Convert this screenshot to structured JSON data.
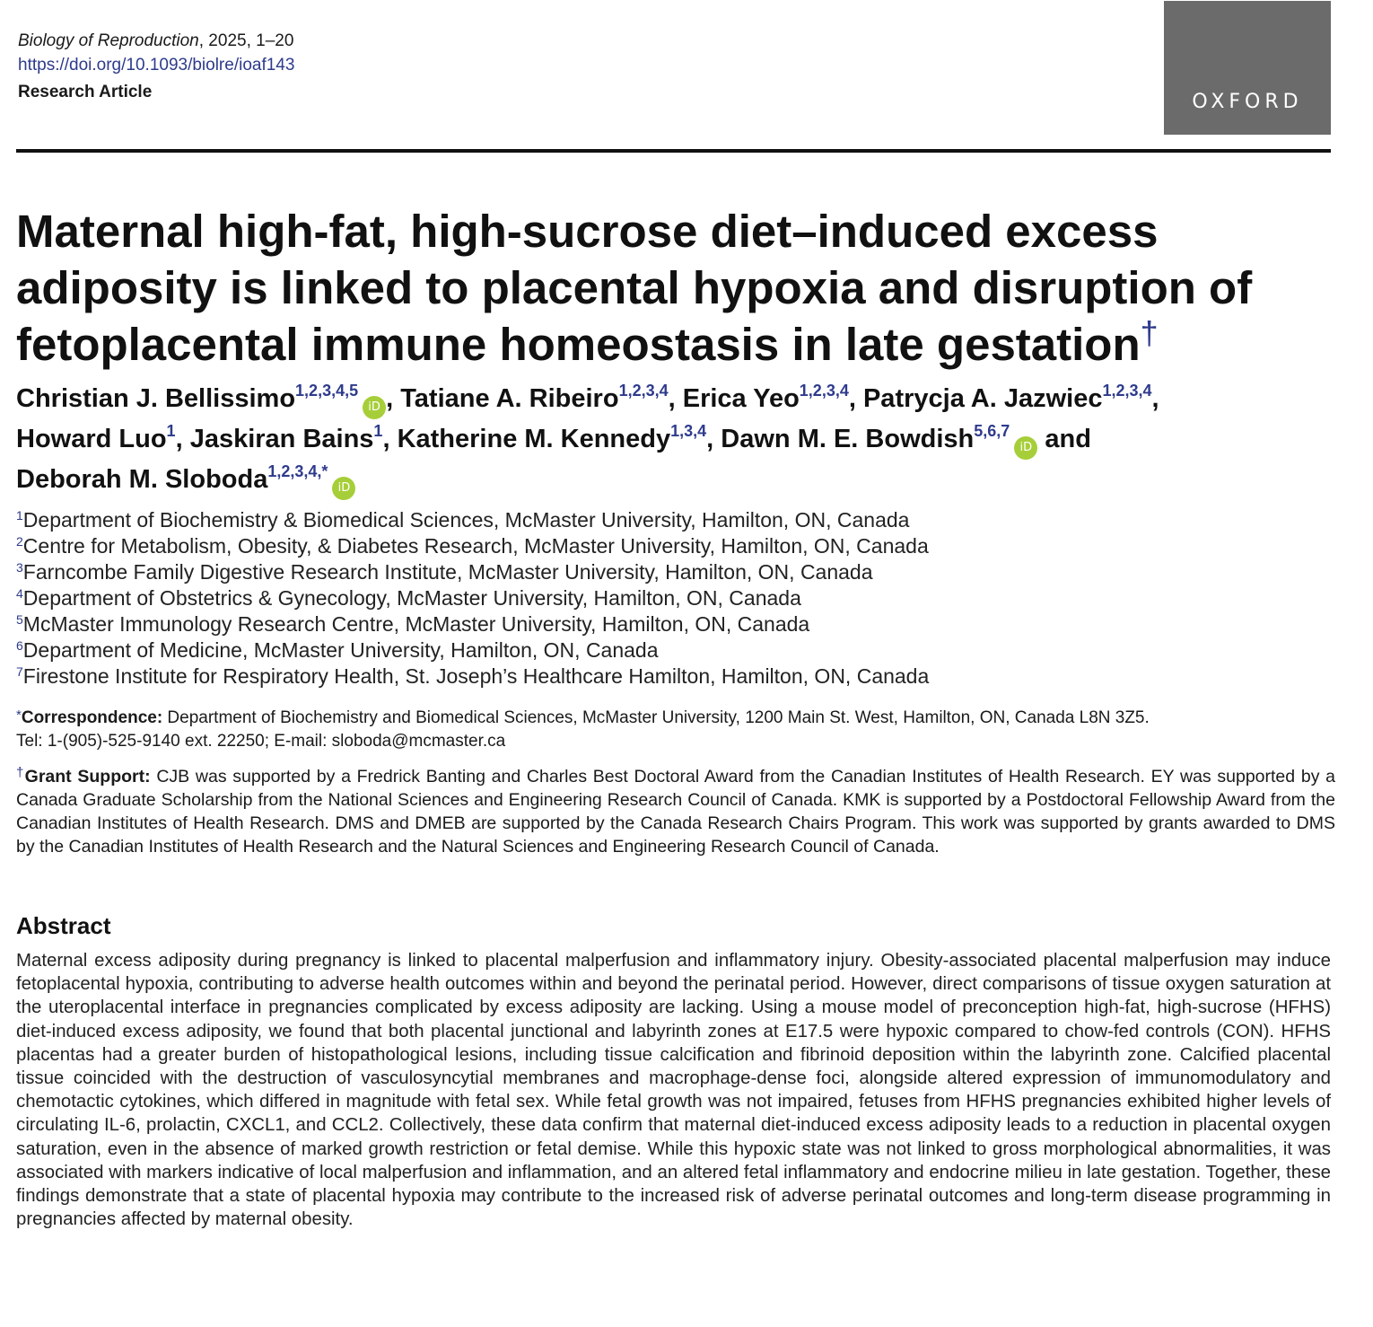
{
  "header": {
    "journal_name": "Biology of Reproduction",
    "journal_rest": ", 2025, 1–20",
    "doi": "https://doi.org/10.1093/biolre/ioaf143",
    "article_type": "Research Article"
  },
  "logo": {
    "text": "OXFORD"
  },
  "title": {
    "text": "Maternal high-fat, high-sucrose diet–induced excess adiposity is linked to placental hypoxia and disruption of fetoplacental immune homeostasis in late gestation",
    "dagger": "†"
  },
  "authors": [
    {
      "name": "Christian J. Bellissimo",
      "sup": "1,2,3,4,5",
      "orcid": true,
      "sep": ", "
    },
    {
      "name": "Tatiane A. Ribeiro",
      "sup": "1,2,3,4",
      "orcid": false,
      "sep": ", "
    },
    {
      "name": "Erica Yeo",
      "sup": "1,2,3,4",
      "orcid": false,
      "sep": ", "
    },
    {
      "name": "Patrycja A. Jazwiec",
      "sup": "1,2,3,4",
      "orcid": false,
      "sep": ", "
    },
    {
      "name": "Howard Luo",
      "sup": "1",
      "orcid": false,
      "sep": ", "
    },
    {
      "name": "Jaskiran Bains",
      "sup": "1",
      "orcid": false,
      "sep": ", "
    },
    {
      "name": "Katherine M. Kennedy",
      "sup": "1,3,4",
      "orcid": false,
      "sep": ", "
    },
    {
      "name": "Dawn M. E. Bowdish",
      "sup": "5,6,7",
      "orcid": true,
      "sep": " and "
    },
    {
      "name": "Deborah M. Sloboda",
      "sup": "1,2,3,4,*",
      "orcid": true,
      "sep": ""
    }
  ],
  "orcid_label": "iD",
  "affiliations": [
    {
      "num": "1",
      "text": "Department of Biochemistry & Biomedical Sciences, McMaster University, Hamilton, ON, Canada"
    },
    {
      "num": "2",
      "text": "Centre for Metabolism, Obesity, & Diabetes Research, McMaster University, Hamilton, ON, Canada"
    },
    {
      "num": "3",
      "text": "Farncombe Family Digestive Research Institute, McMaster University, Hamilton, ON, Canada"
    },
    {
      "num": "4",
      "text": "Department of Obstetrics & Gynecology, McMaster University, Hamilton, ON, Canada"
    },
    {
      "num": "5",
      "text": "McMaster Immunology Research Centre, McMaster University, Hamilton, ON, Canada"
    },
    {
      "num": "6",
      "text": "Department of Medicine, McMaster University, Hamilton, ON, Canada"
    },
    {
      "num": "7",
      "text": "Firestone Institute for Respiratory Health, St. Joseph’s Healthcare Hamilton, Hamilton, ON, Canada"
    }
  ],
  "correspondence": {
    "mark": "*",
    "label": "Correspondence:",
    "text": " Department of Biochemistry and Biomedical Sciences, McMaster University, 1200 Main St. West, Hamilton, ON, Canada L8N 3Z5.",
    "contact": "Tel: 1-(905)-525-9140 ext. 22250; E-mail: sloboda@mcmaster.ca"
  },
  "grant": {
    "mark": "†",
    "label": "Grant Support:",
    "text": " CJB was supported by a Fredrick Banting and Charles Best Doctoral Award from the Canadian Institutes of Health Research. EY was supported by a Canada Graduate Scholarship from the National Sciences and Engineering Research Council of Canada. KMK is supported by a Postdoctoral Fellowship Award from the Canadian Institutes of Health Research. DMS and DMEB are supported by the Canada Research Chairs Program. This work was supported by grants awarded to DMS by the Canadian Institutes of Health Research and the Natural Sciences and Engineering Research Council of Canada."
  },
  "abstract": {
    "heading": "Abstract",
    "text": "Maternal excess adiposity during pregnancy is linked to placental malperfusion and inflammatory injury. Obesity-associated placental malper­fusion may induce fetoplacental hypoxia, contributing to adverse health outcomes within and beyond the perinatal period. However, direct comparisons of tissue oxygen saturation at the uteroplacental interface in pregnancies complicated by excess adiposity are lacking. Using a mouse model of preconception high-fat, high-sucrose (HFHS) diet-induced excess adiposity, we found that both placental junctional and labyrinth zones at E17.5 were hypoxic compared to chow-fed controls (CON). HFHS placentas had a greater burden of histopathological lesions, including tissue calcification and fibrinoid deposition within the labyrinth zone. Calcified placental tissue coincided with the destruction of vasculosyncytial membranes and macrophage-dense foci, alongside altered expression of immunomodulatory and chemotactic cytokines, which differed in magnitude with fetal sex. While fetal growth was not impaired, fetuses from HFHS pregnancies exhibited higher levels of circulating IL-6, prolactin, CXCL1, and CCL2. Collectively, these data confirm that maternal diet-induced excess adiposity leads to a reduction in placental oxygen saturation, even in the absence of marked growth restriction or fetal demise. While this hypoxic state was not linked to gross morphological abnormalities, it was associated with markers indicative of local malperfusion and inflammation, and an altered fetal inflammatory and endocrine milieu in late gestation. Together, these findings demonstrate that a state of placental hypoxia may contribute to the increased risk of adverse perinatal outcomes and long-term disease programming in pregnancies affected by maternal obesity."
  }
}
